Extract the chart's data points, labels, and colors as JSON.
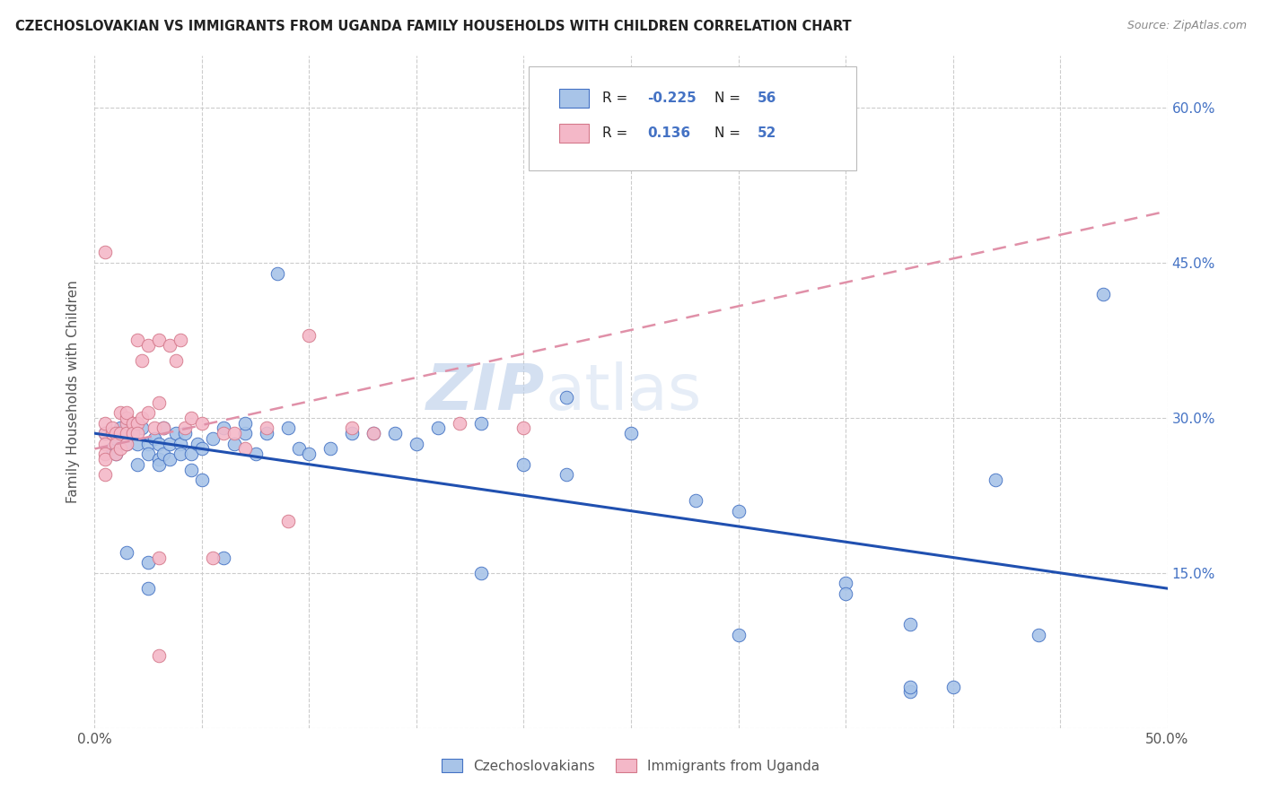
{
  "title": "CZECHOSLOVAKIAN VS IMMIGRANTS FROM UGANDA FAMILY HOUSEHOLDS WITH CHILDREN CORRELATION CHART",
  "source": "Source: ZipAtlas.com",
  "ylabel": "Family Households with Children",
  "xlim": [
    0.0,
    0.5
  ],
  "ylim": [
    0.0,
    0.65
  ],
  "x_ticks": [
    0.0,
    0.05,
    0.1,
    0.15,
    0.2,
    0.25,
    0.3,
    0.35,
    0.4,
    0.45,
    0.5
  ],
  "y_ticks": [
    0.0,
    0.15,
    0.3,
    0.45,
    0.6
  ],
  "y_tick_labels": [
    "",
    "15.0%",
    "30.0%",
    "45.0%",
    "60.0%"
  ],
  "blue_color": "#4472c4",
  "pink_color": "#d4788a",
  "blue_scatter_face": "#a8c4e8",
  "pink_scatter_face": "#f4b8c8",
  "blue_line_color": "#2050b0",
  "pink_line_color": "#e090a8",
  "watermark_color": "#c8d8f0",
  "background_color": "#ffffff",
  "grid_color": "#cccccc",
  "blue_R": "-0.225",
  "blue_N": "56",
  "pink_R": "0.136",
  "pink_N": "52",
  "blue_points_x": [
    0.005,
    0.008,
    0.01,
    0.01,
    0.012,
    0.015,
    0.015,
    0.02,
    0.02,
    0.022,
    0.025,
    0.025,
    0.028,
    0.03,
    0.03,
    0.03,
    0.032,
    0.032,
    0.035,
    0.035,
    0.038,
    0.04,
    0.04,
    0.042,
    0.045,
    0.045,
    0.048,
    0.05,
    0.05,
    0.055,
    0.06,
    0.065,
    0.07,
    0.07,
    0.075,
    0.08,
    0.085,
    0.09,
    0.095,
    0.1,
    0.11,
    0.12,
    0.13,
    0.14,
    0.15,
    0.16,
    0.18,
    0.2,
    0.22,
    0.25,
    0.28,
    0.3,
    0.38,
    0.42,
    0.44,
    0.47
  ],
  "blue_points_y": [
    0.285,
    0.27,
    0.28,
    0.265,
    0.29,
    0.275,
    0.17,
    0.275,
    0.255,
    0.29,
    0.275,
    0.265,
    0.28,
    0.275,
    0.26,
    0.255,
    0.29,
    0.265,
    0.275,
    0.26,
    0.285,
    0.275,
    0.265,
    0.285,
    0.265,
    0.25,
    0.275,
    0.27,
    0.24,
    0.28,
    0.29,
    0.275,
    0.285,
    0.295,
    0.265,
    0.285,
    0.44,
    0.29,
    0.27,
    0.265,
    0.27,
    0.285,
    0.285,
    0.285,
    0.275,
    0.29,
    0.295,
    0.255,
    0.32,
    0.285,
    0.22,
    0.09,
    0.1,
    0.24,
    0.09,
    0.42
  ],
  "blue_points_x2": [
    0.025,
    0.06,
    0.18,
    0.22,
    0.025,
    0.3,
    0.35,
    0.35,
    0.38,
    0.4,
    0.38
  ],
  "blue_points_y2": [
    0.16,
    0.165,
    0.15,
    0.245,
    0.135,
    0.21,
    0.14,
    0.13,
    0.035,
    0.04,
    0.04
  ],
  "pink_points_x": [
    0.005,
    0.005,
    0.005,
    0.005,
    0.005,
    0.005,
    0.008,
    0.008,
    0.01,
    0.01,
    0.01,
    0.012,
    0.012,
    0.012,
    0.015,
    0.015,
    0.015,
    0.015,
    0.015,
    0.018,
    0.018,
    0.02,
    0.02,
    0.02,
    0.022,
    0.022,
    0.025,
    0.025,
    0.028,
    0.03,
    0.03,
    0.032,
    0.035,
    0.038,
    0.04,
    0.042,
    0.045,
    0.05,
    0.055,
    0.06,
    0.065,
    0.07,
    0.08,
    0.09,
    0.1,
    0.12,
    0.13,
    0.17,
    0.2,
    0.005,
    0.03,
    0.03
  ],
  "pink_points_y": [
    0.285,
    0.275,
    0.265,
    0.295,
    0.26,
    0.245,
    0.285,
    0.29,
    0.285,
    0.275,
    0.265,
    0.285,
    0.27,
    0.305,
    0.295,
    0.3,
    0.305,
    0.285,
    0.275,
    0.295,
    0.285,
    0.295,
    0.285,
    0.375,
    0.3,
    0.355,
    0.305,
    0.37,
    0.29,
    0.315,
    0.375,
    0.29,
    0.37,
    0.355,
    0.375,
    0.29,
    0.3,
    0.295,
    0.165,
    0.285,
    0.285,
    0.27,
    0.29,
    0.2,
    0.38,
    0.29,
    0.285,
    0.295,
    0.29,
    0.46,
    0.07,
    0.165
  ],
  "blue_trend_x": [
    0.0,
    0.5
  ],
  "blue_trend_y": [
    0.285,
    0.135
  ],
  "pink_trend_x": [
    0.0,
    0.5
  ],
  "pink_trend_y": [
    0.27,
    0.5
  ]
}
